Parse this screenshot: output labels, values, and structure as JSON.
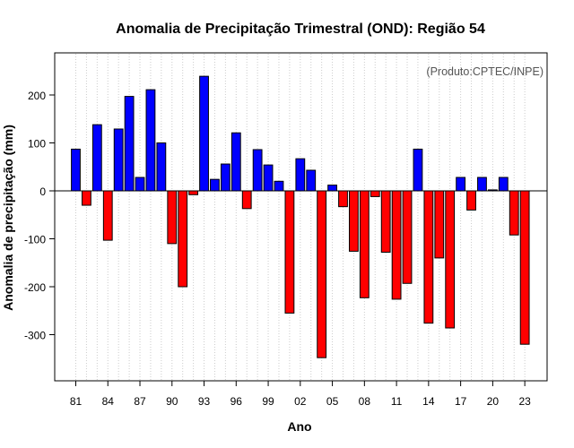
{
  "chart_data": {
    "type": "bar",
    "title": "Anomalia de Precipitação Trimestral (OND): Região 54",
    "xlabel": "Ano",
    "ylabel": "Anomalia de precipitação (mm)",
    "source_note": "(Produto:CPTEC/INPE)",
    "ylim": [
      -400,
      290
    ],
    "y_ticks": [
      -300,
      -200,
      -100,
      0,
      100,
      200
    ],
    "x_tick_labels": [
      "81",
      "84",
      "87",
      "90",
      "93",
      "96",
      "99",
      "02",
      "05",
      "08",
      "11",
      "14",
      "17",
      "20",
      "23"
    ],
    "x_tick_every": 3,
    "categories": [
      "81",
      "82",
      "83",
      "84",
      "85",
      "86",
      "87",
      "88",
      "89",
      "90",
      "91",
      "92",
      "93",
      "94",
      "95",
      "96",
      "97",
      "98",
      "99",
      "00",
      "01",
      "02",
      "03",
      "04",
      "05",
      "06",
      "07",
      "08",
      "09",
      "10",
      "11",
      "12",
      "13",
      "14",
      "15",
      "16",
      "17",
      "18",
      "19",
      "20",
      "21",
      "22",
      "23"
    ],
    "values": [
      87,
      -30,
      138,
      -103,
      129,
      197,
      28,
      211,
      100,
      -110,
      -200,
      -8,
      239,
      24,
      56,
      121,
      -37,
      86,
      54,
      20,
      -255,
      67,
      43,
      -348,
      12,
      -33,
      -126,
      -223,
      -12,
      -128,
      -226,
      -193,
      87,
      -276,
      -140,
      -286,
      28,
      -40,
      28,
      2,
      28,
      -92,
      -320
    ],
    "colors": {
      "positive": "#0000ff",
      "negative": "#ff0000",
      "zero_line": "#000000",
      "grid": "#cccccc"
    }
  }
}
